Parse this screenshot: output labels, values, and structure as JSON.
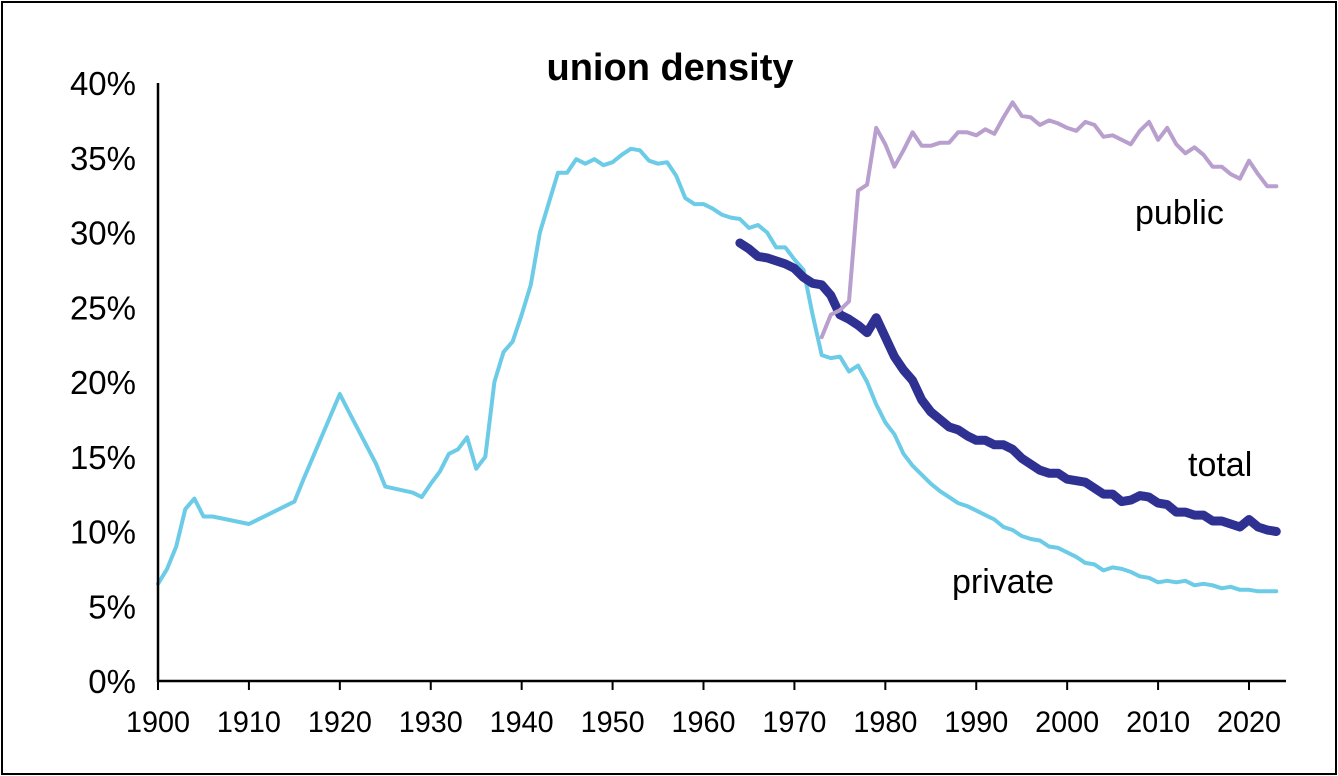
{
  "chart_data": {
    "type": "line",
    "title": "union density",
    "xlabel": "",
    "ylabel": "",
    "xlim": [
      1900,
      2023
    ],
    "ylim": [
      0,
      40
    ],
    "x_ticks": [
      "1900",
      "1910",
      "1920",
      "1930",
      "1940",
      "1950",
      "1960",
      "1970",
      "1980",
      "1990",
      "2000",
      "2010",
      "2020"
    ],
    "y_ticks": [
      "0%",
      "5%",
      "10%",
      "15%",
      "20%",
      "25%",
      "30%",
      "35%",
      "40%"
    ],
    "grid": false,
    "series": [
      {
        "name": "private",
        "color": "#6ccbe6",
        "width": 4,
        "x": [
          1900,
          1901,
          1902,
          1903,
          1904,
          1905,
          1906,
          1910,
          1915,
          1916,
          1920,
          1921,
          1924,
          1925,
          1928,
          1929,
          1930,
          1931,
          1932,
          1933,
          1934,
          1935,
          1936,
          1937,
          1938,
          1939,
          1940,
          1941,
          1942,
          1943,
          1944,
          1945,
          1946,
          1947,
          1948,
          1949,
          1950,
          1951,
          1952,
          1953,
          1954,
          1955,
          1956,
          1957,
          1958,
          1959,
          1960,
          1961,
          1962,
          1963,
          1964,
          1965,
          1966,
          1967,
          1968,
          1969,
          1970,
          1971,
          1972,
          1973,
          1974,
          1975,
          1976,
          1977,
          1978,
          1979,
          1980,
          1981,
          1982,
          1983,
          1984,
          1985,
          1986,
          1987,
          1988,
          1989,
          1990,
          1991,
          1992,
          1993,
          1994,
          1995,
          1996,
          1997,
          1998,
          1999,
          2000,
          2001,
          2002,
          2003,
          2004,
          2005,
          2006,
          2007,
          2008,
          2009,
          2010,
          2011,
          2012,
          2013,
          2014,
          2015,
          2016,
          2017,
          2018,
          2019,
          2020,
          2021,
          2022,
          2023
        ],
        "y": [
          6.5,
          7.5,
          9,
          11.5,
          12.2,
          11,
          11,
          10.5,
          12,
          13.5,
          19.2,
          18,
          14.5,
          13,
          12.6,
          12.3,
          13.2,
          14,
          15.2,
          15.5,
          16.3,
          14.2,
          15,
          20,
          22,
          22.7,
          24.5,
          26.5,
          30,
          32,
          34,
          34,
          34.9,
          34.6,
          34.9,
          34.5,
          34.7,
          35.2,
          35.6,
          35.5,
          34.8,
          34.6,
          34.7,
          33.8,
          32.3,
          31.9,
          31.9,
          31.6,
          31.2,
          31,
          30.9,
          30.3,
          30.5,
          30,
          29,
          29,
          28.2,
          27.5,
          24.5,
          21.8,
          21.6,
          21.7,
          20.7,
          21.1,
          20,
          18.5,
          17.3,
          16.5,
          15.2,
          14.4,
          13.8,
          13.2,
          12.7,
          12.3,
          11.9,
          11.7,
          11.4,
          11.1,
          10.8,
          10.3,
          10.1,
          9.7,
          9.5,
          9.4,
          9,
          8.9,
          8.6,
          8.3,
          7.9,
          7.8,
          7.4,
          7.6,
          7.5,
          7.3,
          7,
          6.9,
          6.6,
          6.7,
          6.6,
          6.7,
          6.4,
          6.5,
          6.4,
          6.2,
          6.3,
          6.1,
          6.1,
          6,
          6,
          6
        ]
      },
      {
        "name": "total",
        "color": "#2e3192",
        "width": 9,
        "x": [
          1964,
          1965,
          1966,
          1967,
          1968,
          1969,
          1970,
          1971,
          1972,
          1973,
          1974,
          1975,
          1976,
          1977,
          1978,
          1979,
          1980,
          1981,
          1982,
          1983,
          1984,
          1985,
          1986,
          1987,
          1988,
          1989,
          1990,
          1991,
          1992,
          1993,
          1994,
          1995,
          1996,
          1997,
          1998,
          1999,
          2000,
          2001,
          2002,
          2003,
          2004,
          2005,
          2006,
          2007,
          2008,
          2009,
          2010,
          2011,
          2012,
          2013,
          2014,
          2015,
          2016,
          2017,
          2018,
          2019,
          2020,
          2021,
          2022,
          2023
        ],
        "y": [
          29.3,
          28.9,
          28.4,
          28.3,
          28.1,
          27.9,
          27.6,
          27,
          26.6,
          26.5,
          25.8,
          24.5,
          24.2,
          23.8,
          23.3,
          24.3,
          23,
          21.7,
          20.8,
          20.1,
          18.8,
          18,
          17.5,
          17,
          16.8,
          16.4,
          16.1,
          16.1,
          15.8,
          15.8,
          15.5,
          14.9,
          14.5,
          14.1,
          13.9,
          13.9,
          13.5,
          13.4,
          13.3,
          12.9,
          12.5,
          12.5,
          12,
          12.1,
          12.4,
          12.3,
          11.9,
          11.8,
          11.3,
          11.3,
          11.1,
          11.1,
          10.7,
          10.7,
          10.5,
          10.3,
          10.8,
          10.3,
          10.1,
          10
        ]
      },
      {
        "name": "public",
        "color": "#b89fcd",
        "width": 4,
        "x": [
          1973,
          1974,
          1975,
          1976,
          1977,
          1978,
          1979,
          1980,
          1981,
          1982,
          1983,
          1984,
          1985,
          1986,
          1987,
          1988,
          1989,
          1990,
          1991,
          1992,
          1993,
          1994,
          1995,
          1996,
          1997,
          1998,
          1999,
          2000,
          2001,
          2002,
          2003,
          2004,
          2005,
          2006,
          2007,
          2008,
          2009,
          2010,
          2011,
          2012,
          2013,
          2014,
          2015,
          2016,
          2017,
          2018,
          2019,
          2020,
          2021,
          2022,
          2023
        ],
        "y": [
          23,
          24.5,
          24.8,
          25.4,
          32.8,
          33.2,
          37,
          35.9,
          34.4,
          35.5,
          36.7,
          35.8,
          35.8,
          36,
          36,
          36.7,
          36.7,
          36.5,
          36.9,
          36.6,
          37.7,
          38.7,
          37.8,
          37.7,
          37.2,
          37.5,
          37.3,
          37,
          36.8,
          37.4,
          37.2,
          36.4,
          36.5,
          36.2,
          35.9,
          36.8,
          37.4,
          36.2,
          37,
          35.9,
          35.3,
          35.7,
          35.2,
          34.4,
          34.4,
          33.9,
          33.6,
          34.8,
          33.9,
          33.1,
          33.1
        ]
      }
    ],
    "annotations": [
      {
        "text": "public",
        "series": "public"
      },
      {
        "text": "total",
        "series": "total"
      },
      {
        "text": "private",
        "series": "private"
      }
    ]
  }
}
